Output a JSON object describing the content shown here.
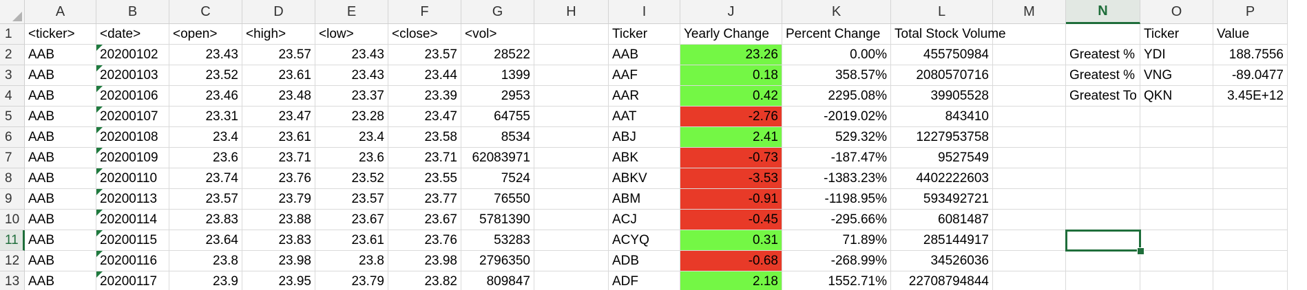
{
  "columns": [
    "A",
    "B",
    "C",
    "D",
    "E",
    "F",
    "G",
    "H",
    "I",
    "J",
    "K",
    "L",
    "M",
    "N",
    "O",
    "P"
  ],
  "rows": [
    "1",
    "2",
    "3",
    "4",
    "5",
    "6",
    "7",
    "8",
    "9",
    "10",
    "11",
    "12",
    "13"
  ],
  "selected_cell": {
    "col": "N",
    "row": "11"
  },
  "colors": {
    "positive_fill": "#74f745",
    "negative_fill": "#e83a28",
    "selection": "#1f6e3b"
  },
  "raw_headers": [
    "<ticker>",
    "<date>",
    "<open>",
    "<high>",
    "<low>",
    "<close>",
    "<vol>"
  ],
  "raw_data": [
    [
      "AAB",
      "20200102",
      "23.43",
      "23.57",
      "23.43",
      "23.57",
      "28522"
    ],
    [
      "AAB",
      "20200103",
      "23.52",
      "23.61",
      "23.43",
      "23.44",
      "1399"
    ],
    [
      "AAB",
      "20200106",
      "23.46",
      "23.48",
      "23.37",
      "23.39",
      "2953"
    ],
    [
      "AAB",
      "20200107",
      "23.31",
      "23.47",
      "23.28",
      "23.47",
      "64755"
    ],
    [
      "AAB",
      "20200108",
      "23.4",
      "23.61",
      "23.4",
      "23.58",
      "8534"
    ],
    [
      "AAB",
      "20200109",
      "23.6",
      "23.71",
      "23.6",
      "23.71",
      "62083971"
    ],
    [
      "AAB",
      "20200110",
      "23.74",
      "23.76",
      "23.52",
      "23.55",
      "7524"
    ],
    [
      "AAB",
      "20200113",
      "23.57",
      "23.79",
      "23.57",
      "23.77",
      "76550"
    ],
    [
      "AAB",
      "20200114",
      "23.83",
      "23.88",
      "23.67",
      "23.67",
      "5781390"
    ],
    [
      "AAB",
      "20200115",
      "23.64",
      "23.83",
      "23.61",
      "23.76",
      "53283"
    ],
    [
      "AAB",
      "20200116",
      "23.8",
      "23.98",
      "23.8",
      "23.98",
      "2796350"
    ],
    [
      "AAB",
      "20200117",
      "23.9",
      "23.95",
      "23.79",
      "23.82",
      "809847"
    ]
  ],
  "summary_headers": [
    "Ticker",
    "Yearly Change",
    "Percent Change",
    "Total Stock Volume"
  ],
  "summary_data": [
    [
      "AAB",
      "23.26",
      "0.00%",
      "455750984"
    ],
    [
      "AAF",
      "0.18",
      "358.57%",
      "2080570716"
    ],
    [
      "AAR",
      "0.42",
      "2295.08%",
      "39905528"
    ],
    [
      "AAT",
      "-2.76",
      "-2019.02%",
      "843410"
    ],
    [
      "ABJ",
      "2.41",
      "529.32%",
      "1227953758"
    ],
    [
      "ABK",
      "-0.73",
      "-187.47%",
      "9527549"
    ],
    [
      "ABKV",
      "-3.53",
      "-1383.23%",
      "4402222603"
    ],
    [
      "ABM",
      "-0.91",
      "-1198.95%",
      "593492721"
    ],
    [
      "ACJ",
      "-0.45",
      "-295.66%",
      "6081487"
    ],
    [
      "ACYQ",
      "0.31",
      "71.89%",
      "285144917"
    ],
    [
      "ADB",
      "-0.68",
      "-268.99%",
      "34526036"
    ],
    [
      "ADF",
      "2.18",
      "1552.71%",
      "22708794844"
    ]
  ],
  "greatest_headers": [
    "Ticker",
    "Value"
  ],
  "greatest_data": [
    [
      "Greatest %",
      "YDI",
      "188.7556"
    ],
    [
      "Greatest %",
      "VNG",
      "-89.0477"
    ],
    [
      "Greatest To",
      "QKN",
      "3.45E+12"
    ]
  ]
}
